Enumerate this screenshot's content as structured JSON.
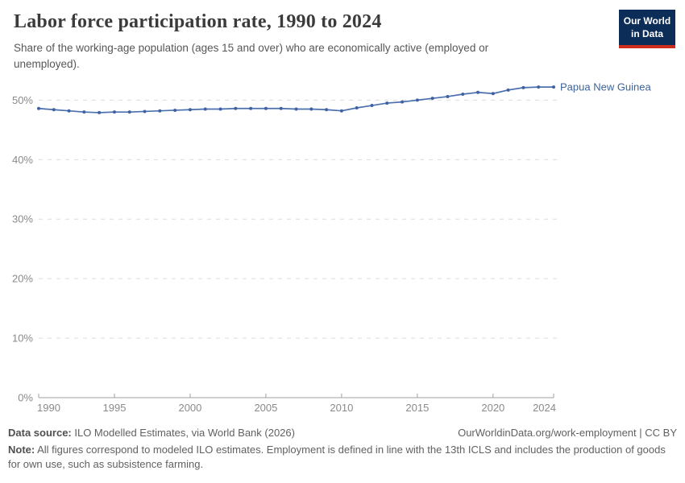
{
  "header": {
    "title": "Labor force participation rate, 1990 to 2024",
    "subtitle": "Share of the working-age population (ages 15 and over) who are economically active (employed or unemployed).",
    "logo_line1": "Our World",
    "logo_line2": "in Data"
  },
  "chart_data": {
    "type": "line",
    "title": "Labor force participation rate, 1990 to 2024",
    "xlabel": "",
    "ylabel": "",
    "xlim": [
      1990,
      2024
    ],
    "ylim": [
      0,
      53.3
    ],
    "grid": true,
    "legend_position": "end-of-line",
    "x_ticks": [
      1990,
      1995,
      2000,
      2005,
      2010,
      2015,
      2020,
      2024
    ],
    "y_ticks": [
      0,
      10,
      20,
      30,
      40,
      50
    ],
    "y_tick_suffix": "%",
    "x": [
      1990,
      1991,
      1992,
      1993,
      1994,
      1995,
      1996,
      1997,
      1998,
      1999,
      2000,
      2001,
      2002,
      2003,
      2004,
      2005,
      2006,
      2007,
      2008,
      2009,
      2010,
      2011,
      2012,
      2013,
      2014,
      2015,
      2016,
      2017,
      2018,
      2019,
      2020,
      2021,
      2022,
      2023,
      2024
    ],
    "series": [
      {
        "name": "Papua New Guinea",
        "line_color": "#4c6fae",
        "marker_color": "#3f62a3",
        "values": [
          48.6,
          48.4,
          48.2,
          48.0,
          47.9,
          48.0,
          48.0,
          48.1,
          48.2,
          48.3,
          48.4,
          48.5,
          48.5,
          48.6,
          48.6,
          48.6,
          48.6,
          48.5,
          48.5,
          48.4,
          48.2,
          48.7,
          49.1,
          49.5,
          49.7,
          50.0,
          50.3,
          50.6,
          51.0,
          51.3,
          51.1,
          51.7,
          52.1,
          52.2,
          52.2
        ]
      }
    ],
    "gridline_color": "#dcdcdc",
    "axis_color": "#a0a0a0"
  },
  "footer": {
    "datasource_label": "Data source:",
    "datasource_text": " ILO Modelled Estimates, via World Bank (2026)",
    "link": "OurWorldinData.org/work-employment",
    "separator": " | ",
    "license": "CC BY",
    "note_label": "Note:",
    "note_text": " All figures correspond to modeled ILO estimates. Employment is defined in line with the 13th ICLS and includes the production of goods for own use, such as subsistence farming."
  }
}
